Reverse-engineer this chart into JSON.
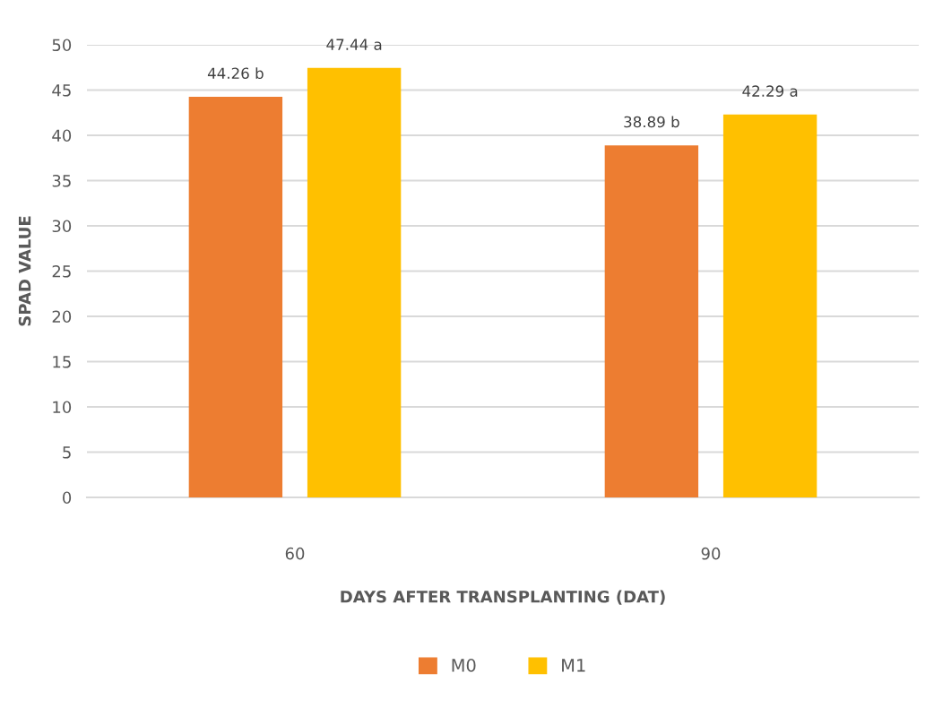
{
  "chart_data": {
    "type": "bar",
    "xlabel": "DAYS AFTER TRANSPLANTING (DAT)",
    "ylabel": "SPAD VALUE",
    "categories": [
      "60",
      "90"
    ],
    "series": [
      {
        "name": "M0",
        "color": "#ed7d31",
        "values": [
          44.26,
          38.89
        ],
        "value_labels": [
          "44.26 b",
          "38.89 b"
        ]
      },
      {
        "name": "M1",
        "color": "#ffc000",
        "values": [
          47.44,
          42.29
        ],
        "value_labels": [
          "47.44 a",
          "42.29 a"
        ]
      }
    ],
    "ylim": [
      0,
      50
    ],
    "yticks": [
      0,
      5,
      10,
      15,
      20,
      25,
      30,
      35,
      40,
      45,
      50
    ],
    "grid": "y",
    "legend": "bottom"
  }
}
